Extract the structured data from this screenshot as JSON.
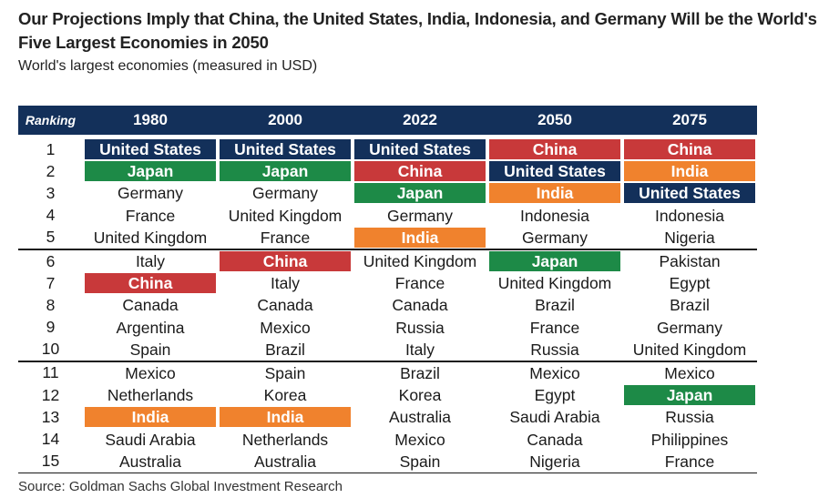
{
  "header": {
    "title": "Our Projections Imply that China, the United States, India, Indonesia, and Germany Will be the World's Five Largest Economies in 2050",
    "subtitle": "World's largest economies (measured in USD)"
  },
  "colors": {
    "header_bg": "#13305a",
    "united_states": "#13305a",
    "japan": "#1d8a47",
    "china": "#c8393a",
    "india": "#f0822d"
  },
  "table": {
    "rank_header": "Ranking",
    "years": [
      "1980",
      "2000",
      "2022",
      "2050",
      "2075"
    ],
    "rows": [
      {
        "rank": "1",
        "cells": [
          {
            "text": "United States",
            "hl": "us"
          },
          {
            "text": "United States",
            "hl": "us"
          },
          {
            "text": "United States",
            "hl": "us"
          },
          {
            "text": "China",
            "hl": "cn"
          },
          {
            "text": "China",
            "hl": "cn"
          }
        ]
      },
      {
        "rank": "2",
        "cells": [
          {
            "text": "Japan",
            "hl": "jp"
          },
          {
            "text": "Japan",
            "hl": "jp"
          },
          {
            "text": "China",
            "hl": "cn"
          },
          {
            "text": "United States",
            "hl": "us"
          },
          {
            "text": "India",
            "hl": "in"
          }
        ]
      },
      {
        "rank": "3",
        "cells": [
          {
            "text": "Germany",
            "hl": ""
          },
          {
            "text": "Germany",
            "hl": ""
          },
          {
            "text": "Japan",
            "hl": "jp"
          },
          {
            "text": "India",
            "hl": "in"
          },
          {
            "text": "United States",
            "hl": "us"
          }
        ]
      },
      {
        "rank": "4",
        "cells": [
          {
            "text": "France",
            "hl": ""
          },
          {
            "text": "United Kingdom",
            "hl": ""
          },
          {
            "text": "Germany",
            "hl": ""
          },
          {
            "text": "Indonesia",
            "hl": ""
          },
          {
            "text": "Indonesia",
            "hl": ""
          }
        ]
      },
      {
        "rank": "5",
        "cells": [
          {
            "text": "United Kingdom",
            "hl": ""
          },
          {
            "text": "France",
            "hl": ""
          },
          {
            "text": "India",
            "hl": "in"
          },
          {
            "text": "Germany",
            "hl": ""
          },
          {
            "text": "Nigeria",
            "hl": ""
          }
        ]
      },
      {
        "rank": "6",
        "cells": [
          {
            "text": "Italy",
            "hl": ""
          },
          {
            "text": "China",
            "hl": "cn"
          },
          {
            "text": "United Kingdom",
            "hl": ""
          },
          {
            "text": "Japan",
            "hl": "jp"
          },
          {
            "text": "Pakistan",
            "hl": ""
          }
        ]
      },
      {
        "rank": "7",
        "cells": [
          {
            "text": "China",
            "hl": "cn"
          },
          {
            "text": "Italy",
            "hl": ""
          },
          {
            "text": "France",
            "hl": ""
          },
          {
            "text": "United Kingdom",
            "hl": ""
          },
          {
            "text": "Egypt",
            "hl": ""
          }
        ]
      },
      {
        "rank": "8",
        "cells": [
          {
            "text": "Canada",
            "hl": ""
          },
          {
            "text": "Canada",
            "hl": ""
          },
          {
            "text": "Canada",
            "hl": ""
          },
          {
            "text": "Brazil",
            "hl": ""
          },
          {
            "text": "Brazil",
            "hl": ""
          }
        ]
      },
      {
        "rank": "9",
        "cells": [
          {
            "text": "Argentina",
            "hl": ""
          },
          {
            "text": "Mexico",
            "hl": ""
          },
          {
            "text": "Russia",
            "hl": ""
          },
          {
            "text": "France",
            "hl": ""
          },
          {
            "text": "Germany",
            "hl": ""
          }
        ]
      },
      {
        "rank": "10",
        "cells": [
          {
            "text": "Spain",
            "hl": ""
          },
          {
            "text": "Brazil",
            "hl": ""
          },
          {
            "text": "Italy",
            "hl": ""
          },
          {
            "text": "Russia",
            "hl": ""
          },
          {
            "text": "United Kingdom",
            "hl": ""
          }
        ]
      },
      {
        "rank": "11",
        "cells": [
          {
            "text": "Mexico",
            "hl": ""
          },
          {
            "text": "Spain",
            "hl": ""
          },
          {
            "text": "Brazil",
            "hl": ""
          },
          {
            "text": "Mexico",
            "hl": ""
          },
          {
            "text": "Mexico",
            "hl": ""
          }
        ]
      },
      {
        "rank": "12",
        "cells": [
          {
            "text": "Netherlands",
            "hl": ""
          },
          {
            "text": "Korea",
            "hl": ""
          },
          {
            "text": "Korea",
            "hl": ""
          },
          {
            "text": "Egypt",
            "hl": ""
          },
          {
            "text": "Japan",
            "hl": "jp"
          }
        ]
      },
      {
        "rank": "13",
        "cells": [
          {
            "text": "India",
            "hl": "in"
          },
          {
            "text": "India",
            "hl": "in"
          },
          {
            "text": "Australia",
            "hl": ""
          },
          {
            "text": "Saudi Arabia",
            "hl": ""
          },
          {
            "text": "Russia",
            "hl": ""
          }
        ]
      },
      {
        "rank": "14",
        "cells": [
          {
            "text": "Saudi Arabia",
            "hl": ""
          },
          {
            "text": "Netherlands",
            "hl": ""
          },
          {
            "text": "Mexico",
            "hl": ""
          },
          {
            "text": "Canada",
            "hl": ""
          },
          {
            "text": "Philippines",
            "hl": ""
          }
        ]
      },
      {
        "rank": "15",
        "cells": [
          {
            "text": "Australia",
            "hl": ""
          },
          {
            "text": "Australia",
            "hl": ""
          },
          {
            "text": "Spain",
            "hl": ""
          },
          {
            "text": "Nigeria",
            "hl": ""
          },
          {
            "text": "France",
            "hl": ""
          }
        ]
      }
    ]
  },
  "footer": {
    "source": "Source: Goldman Sachs Global Investment Research"
  }
}
